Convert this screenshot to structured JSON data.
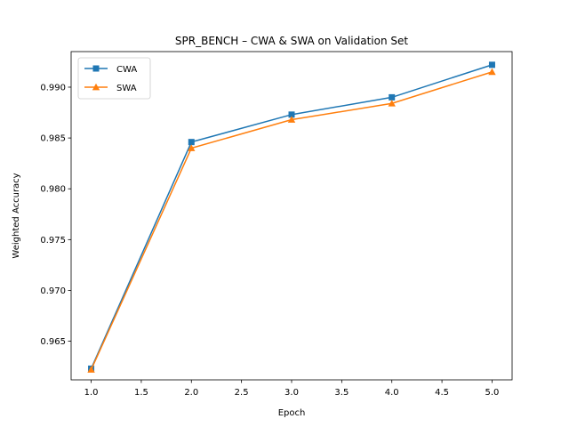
{
  "chart_data": {
    "type": "line",
    "title": "SPR_BENCH – CWA & SWA on Validation Set",
    "xlabel": "Epoch",
    "ylabel": "Weighted Accuracy",
    "x": [
      1,
      2,
      3,
      4,
      5
    ],
    "series": [
      {
        "name": "CWA",
        "values": [
          0.9623,
          0.9846,
          0.9873,
          0.989,
          0.9922
        ],
        "color": "#1f77b4",
        "marker": "square"
      },
      {
        "name": "SWA",
        "values": [
          0.9622,
          0.984,
          0.9868,
          0.9884,
          0.9915
        ],
        "color": "#ff7f0e",
        "marker": "triangle"
      }
    ],
    "xlim": [
      0.8,
      5.2
    ],
    "ylim": [
      0.9612,
      0.9935
    ],
    "xticks": [
      1.0,
      1.5,
      2.0,
      2.5,
      3.0,
      3.5,
      4.0,
      4.5,
      5.0
    ],
    "xtick_labels": [
      "1.0",
      "1.5",
      "2.0",
      "2.5",
      "3.0",
      "3.5",
      "4.0",
      "4.5",
      "5.0"
    ],
    "yticks": [
      0.965,
      0.97,
      0.975,
      0.98,
      0.985,
      0.99
    ],
    "ytick_labels": [
      "0.965",
      "0.970",
      "0.975",
      "0.980",
      "0.985",
      "0.990"
    ],
    "grid": false,
    "legend_position": "upper-left"
  }
}
